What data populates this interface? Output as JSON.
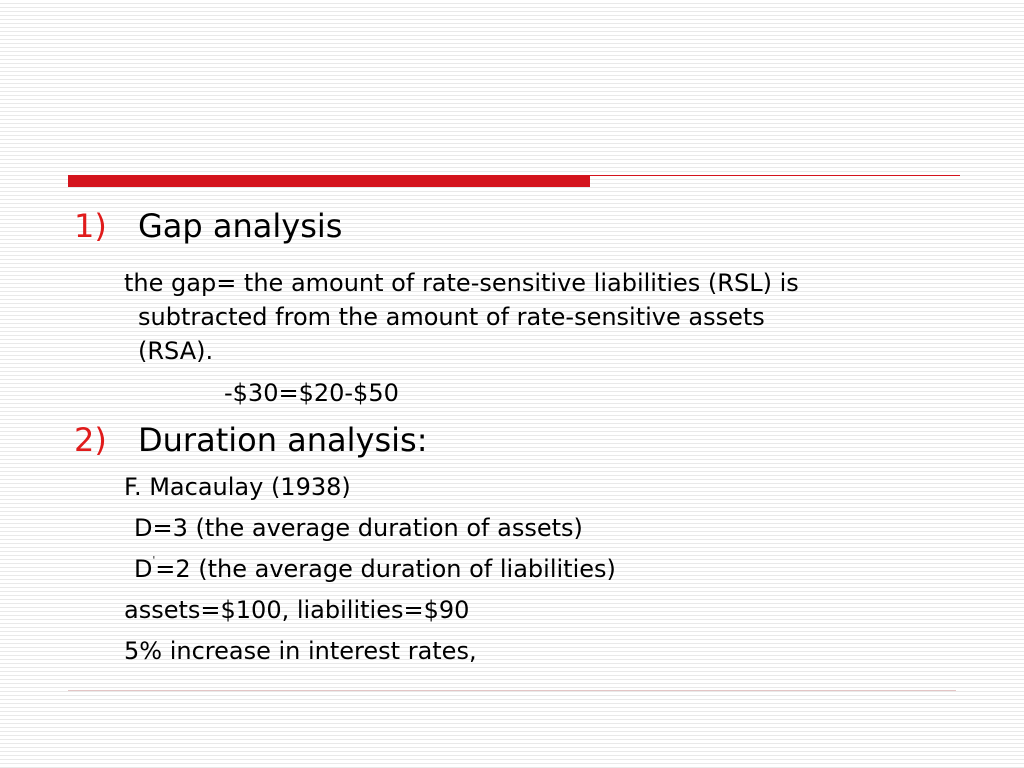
{
  "section1": {
    "number": "1)",
    "title": "Gap analysis",
    "definition_lines": [
      "the gap= the amount of rate-sensitive liabilities (RSL) is",
      "subtracted from the amount of rate-sensitive assets",
      "(RSA)."
    ],
    "example": "-$30=$20-$50"
  },
  "section2": {
    "number": "2)",
    "title": "Duration analysis:",
    "author": "F. Macaulay (1938)",
    "d_assets": "D=3 (the average duration of assets)",
    "d_liab_prefix": "D",
    "d_liab_prime": "'",
    "d_liab_rest": "=2 (the average duration of liabilities)",
    "amounts": "assets=$100,  liabilities=$90",
    "rate_change": "5% increase in interest rates,"
  },
  "colors": {
    "accent": "#d4141d",
    "number_red": "#e01b1b"
  }
}
